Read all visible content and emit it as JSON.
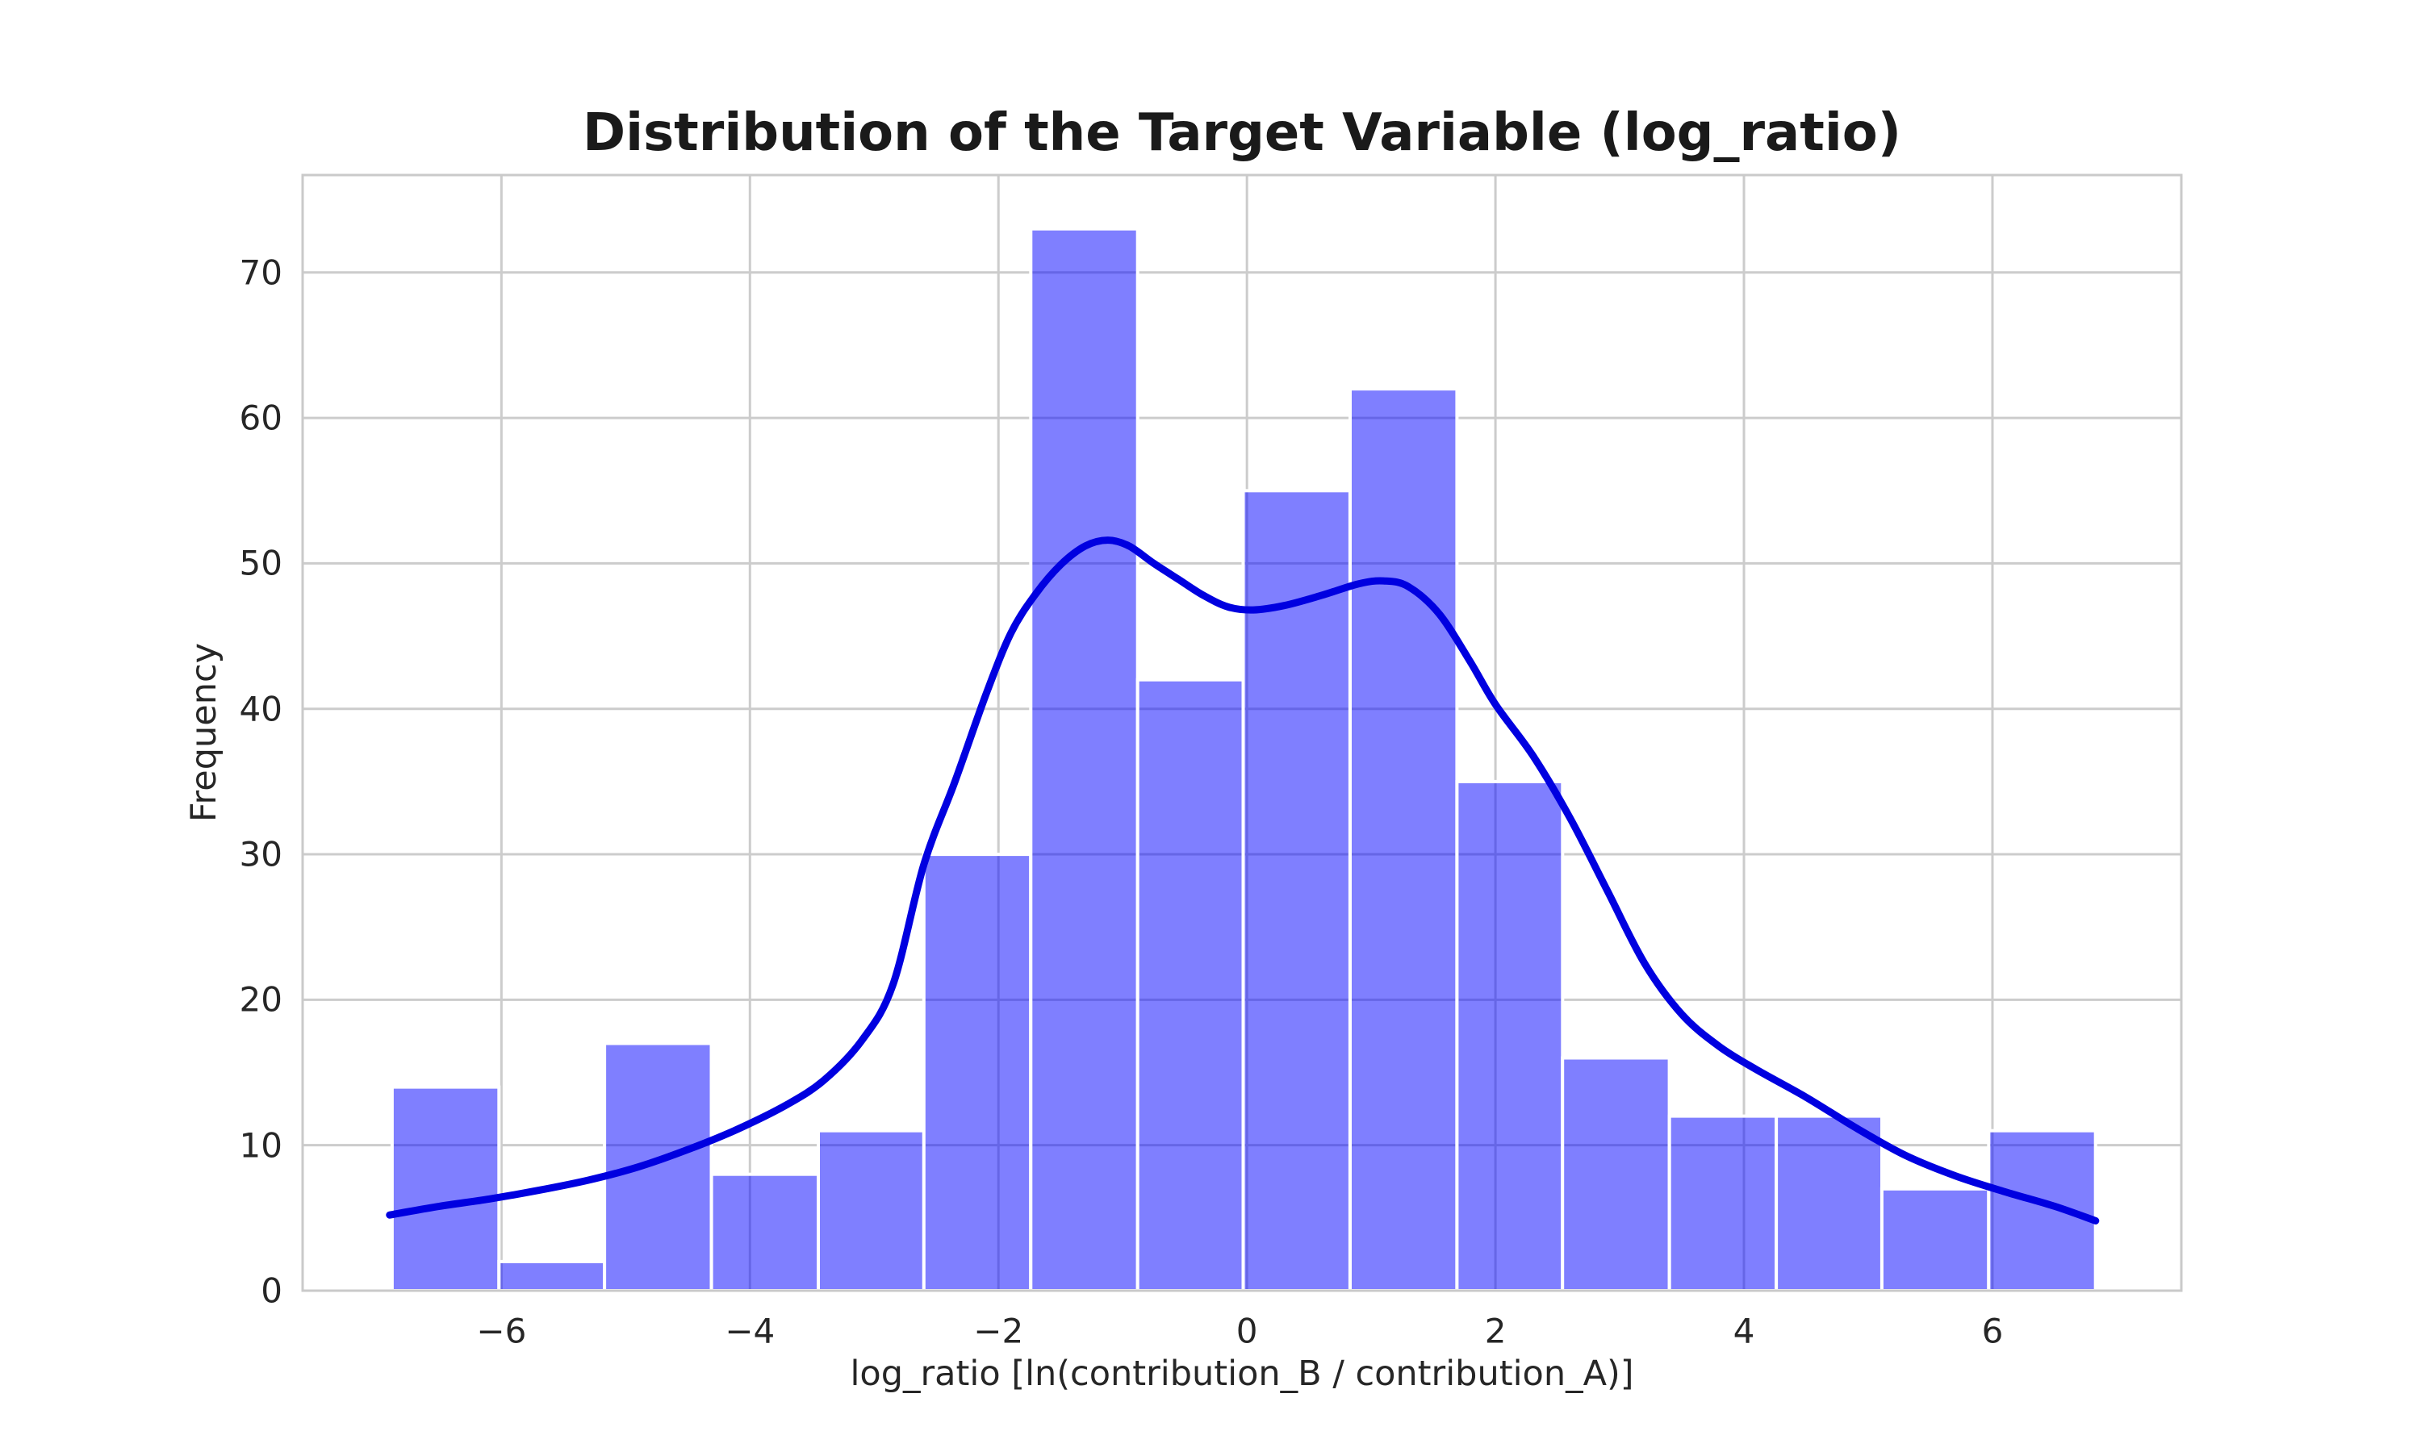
{
  "figure": {
    "background_color": "#ffffff"
  },
  "chart_data": {
    "type": "bar",
    "subtype": "histogram_with_kde",
    "title": "Distribution of the Target Variable (log_ratio)",
    "xlabel": "log_ratio [ln(contribution_B / contribution_A)]",
    "ylabel": "Frequency",
    "n_bins": 16,
    "bin_edges": [
      -6.88,
      -6.02,
      -5.17,
      -4.31,
      -3.45,
      -2.6,
      -1.74,
      -0.88,
      -0.03,
      0.83,
      1.69,
      2.54,
      3.4,
      4.26,
      5.11,
      5.97,
      6.83
    ],
    "counts": [
      14,
      2,
      17,
      8,
      11,
      30,
      73,
      42,
      55,
      62,
      35,
      16,
      12,
      12,
      7,
      11
    ],
    "kde_curve": {
      "x": [
        -6.9,
        -6.5,
        -6.1,
        -5.7,
        -5.3,
        -4.9,
        -4.5,
        -4.1,
        -3.7,
        -3.4,
        -3.1,
        -2.85,
        -2.6,
        -2.35,
        -2.1,
        -1.9,
        -1.7,
        -1.5,
        -1.3,
        -1.12,
        -0.95,
        -0.75,
        -0.55,
        -0.35,
        -0.15,
        0.05,
        0.3,
        0.6,
        0.9,
        1.1,
        1.3,
        1.55,
        1.8,
        2.0,
        2.3,
        2.6,
        2.9,
        3.2,
        3.5,
        3.8,
        4.1,
        4.5,
        4.9,
        5.3,
        5.7,
        6.1,
        6.5,
        6.83
      ],
      "y": [
        5.2,
        5.8,
        6.3,
        6.9,
        7.6,
        8.5,
        9.7,
        11.1,
        12.8,
        14.5,
        17.2,
        21.0,
        29.3,
        35.0,
        41.0,
        45.2,
        47.9,
        49.9,
        51.2,
        51.6,
        51.2,
        50.0,
        48.9,
        47.8,
        47.0,
        46.8,
        47.1,
        47.8,
        48.6,
        48.8,
        48.4,
        46.5,
        43.2,
        40.3,
        36.8,
        32.5,
        27.5,
        22.5,
        19.0,
        16.8,
        15.2,
        13.3,
        11.2,
        9.3,
        7.9,
        6.8,
        5.8,
        4.8
      ]
    },
    "xticks": [
      -6,
      -4,
      -2,
      0,
      2,
      4,
      6
    ],
    "yticks": [
      0,
      10,
      20,
      30,
      40,
      50,
      60,
      70
    ],
    "xlim": [
      -7.6,
      7.52
    ],
    "ylim": [
      0,
      76.7
    ],
    "grid": true,
    "legend": "none",
    "colors": {
      "bar_fill": "rgba(0,0,255,0.5)",
      "bar_edge": "#ffffff",
      "kde_line": "#0000e0",
      "grid_line": "#cccccc",
      "spine": "#cacaca",
      "title_text": "#1a1a1a",
      "tick_text": "#262626",
      "background": "#ffffff"
    }
  }
}
